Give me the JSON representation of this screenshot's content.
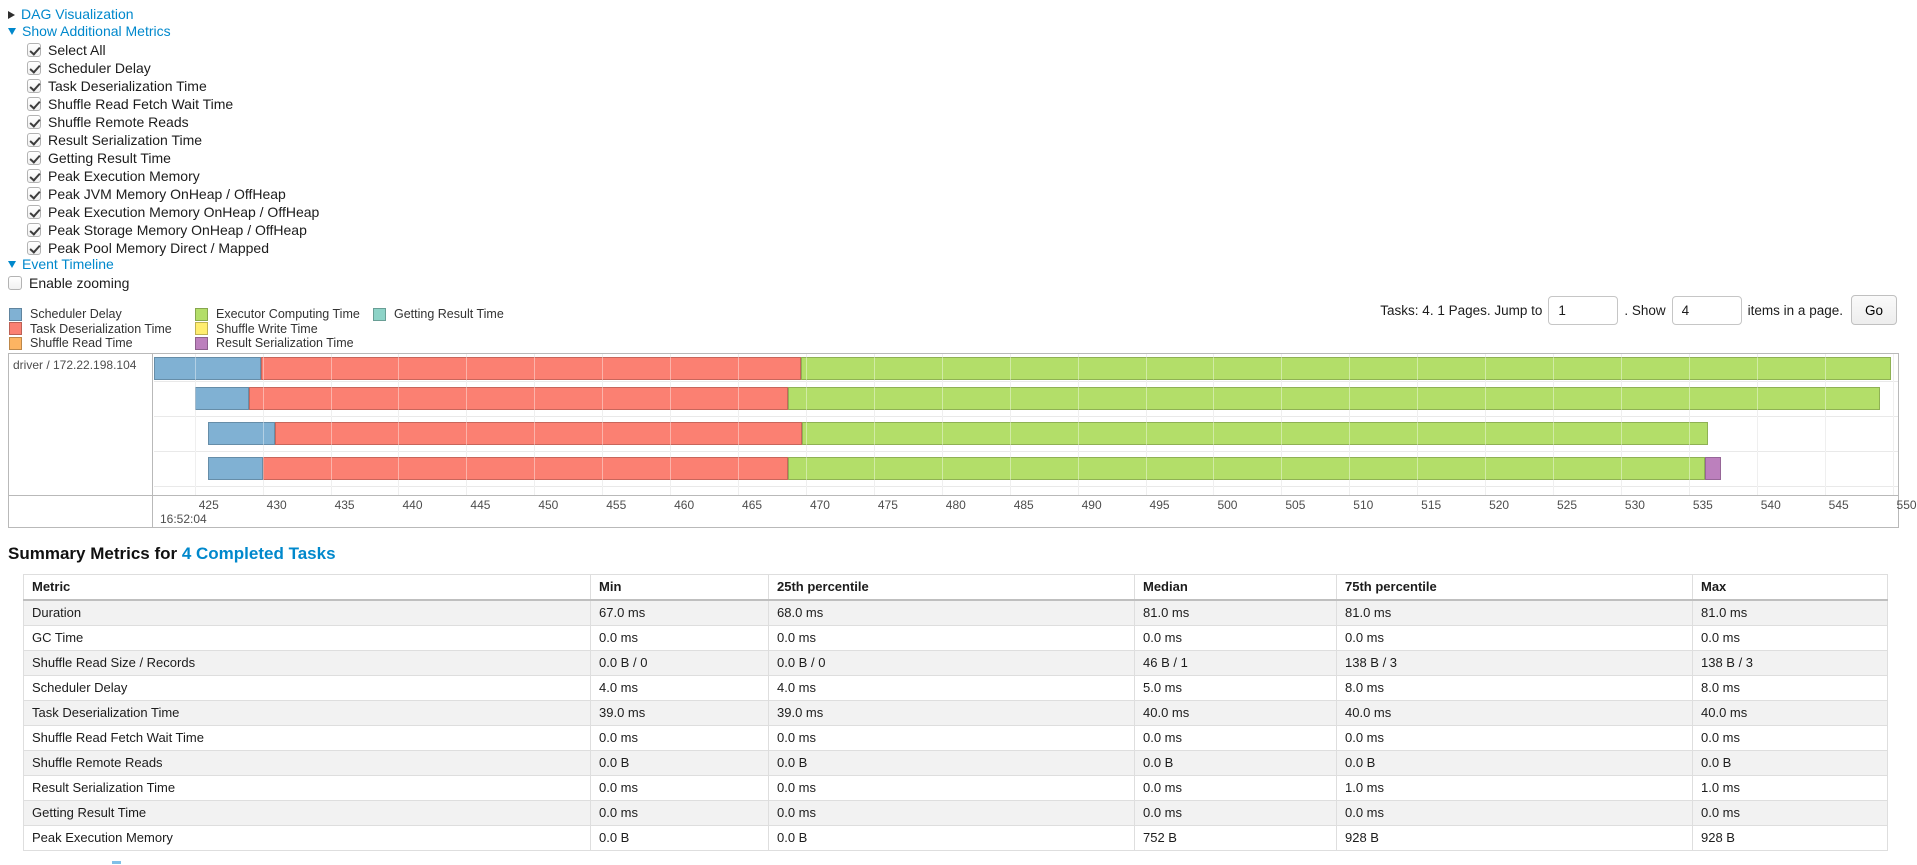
{
  "colors": {
    "link": "#0088cc",
    "scheduler_delay": "#80B1D3",
    "deserialization": "#FB8072",
    "shuffle_read": "#FDB462",
    "executor_computing": "#B3DE69",
    "shuffle_write": "#FFED6F",
    "result_serialization": "#BC80BD",
    "getting_result": "#8DD3C7"
  },
  "toggles": {
    "dag": "DAG Visualization",
    "additional_metrics": "Show Additional Metrics",
    "event_timeline": "Event Timeline"
  },
  "metric_checkboxes": [
    {
      "label": "Select All",
      "checked": true
    },
    {
      "label": "Scheduler Delay",
      "checked": true
    },
    {
      "label": "Task Deserialization Time",
      "checked": true
    },
    {
      "label": "Shuffle Read Fetch Wait Time",
      "checked": true
    },
    {
      "label": "Shuffle Remote Reads",
      "checked": true
    },
    {
      "label": "Result Serialization Time",
      "checked": true
    },
    {
      "label": "Getting Result Time",
      "checked": true
    },
    {
      "label": "Peak Execution Memory",
      "checked": true
    },
    {
      "label": "Peak JVM Memory OnHeap / OffHeap",
      "checked": true
    },
    {
      "label": "Peak Execution Memory OnHeap / OffHeap",
      "checked": true
    },
    {
      "label": "Peak Storage Memory OnHeap / OffHeap",
      "checked": true
    },
    {
      "label": "Peak Pool Memory Direct / Mapped",
      "checked": true
    }
  ],
  "enable_zooming": {
    "label": "Enable zooming",
    "checked": false
  },
  "pagination": {
    "tasks_text": "Tasks: 4. 1 Pages. Jump to",
    "jump_value": "1",
    "show_text": ". Show",
    "show_value": "4",
    "items_text": "items in a page.",
    "go_label": "Go"
  },
  "legend": {
    "columns": [
      [
        {
          "type": "scheduler_delay",
          "label": "Scheduler Delay"
        },
        {
          "type": "deserialization",
          "label": "Task Deserialization Time"
        },
        {
          "type": "shuffle_read",
          "label": "Shuffle Read Time"
        }
      ],
      [
        {
          "type": "executor_computing",
          "label": "Executor Computing Time"
        },
        {
          "type": "shuffle_write",
          "label": "Shuffle Write Time"
        },
        {
          "type": "result_serialization",
          "label": "Result Serialization Time"
        }
      ],
      [
        {
          "type": "getting_result",
          "label": "Getting Result Time"
        }
      ]
    ]
  },
  "chart_data": {
    "type": "timeline",
    "title": "Event Timeline",
    "row_label": "driver / 172.22.198.104",
    "axis_start": 422.0,
    "axis_end": 550.4,
    "ticks": [
      425,
      430,
      435,
      440,
      445,
      450,
      455,
      460,
      465,
      470,
      475,
      480,
      485,
      490,
      495,
      500,
      505,
      510,
      515,
      520,
      525,
      530,
      535,
      540,
      545,
      550
    ],
    "major_tick_label": "16:52:04",
    "tasks": [
      {
        "segments": [
          {
            "type": "scheduler_delay",
            "start": 422.0,
            "end": 429.9
          },
          {
            "type": "deserialization",
            "start": 429.9,
            "end": 469.6
          },
          {
            "type": "executor_computing",
            "start": 469.6,
            "end": 549.9
          }
        ]
      },
      {
        "segments": [
          {
            "type": "scheduler_delay",
            "start": 425.0,
            "end": 429.0
          },
          {
            "type": "deserialization",
            "start": 429.0,
            "end": 468.7
          },
          {
            "type": "executor_computing",
            "start": 468.7,
            "end": 549.1
          }
        ]
      },
      {
        "segments": [
          {
            "type": "scheduler_delay",
            "start": 426.0,
            "end": 430.9
          },
          {
            "type": "deserialization",
            "start": 430.9,
            "end": 469.7
          },
          {
            "type": "executor_computing",
            "start": 469.7,
            "end": 536.4
          }
        ]
      },
      {
        "segments": [
          {
            "type": "scheduler_delay",
            "start": 426.0,
            "end": 430.0
          },
          {
            "type": "deserialization",
            "start": 430.0,
            "end": 468.7
          },
          {
            "type": "executor_computing",
            "start": 468.7,
            "end": 536.2
          },
          {
            "type": "result_serialization",
            "start": 536.2,
            "end": 537.4
          }
        ]
      }
    ]
  },
  "summary": {
    "title_prefix": "Summary Metrics for ",
    "title_link": "4 Completed Tasks",
    "columns": [
      "Metric",
      "Min",
      "25th percentile",
      "Median",
      "75th percentile",
      "Max"
    ],
    "rows": [
      {
        "metric": "Duration",
        "values": [
          "67.0 ms",
          "68.0 ms",
          "81.0 ms",
          "81.0 ms",
          "81.0 ms"
        ]
      },
      {
        "metric": "GC Time",
        "values": [
          "0.0 ms",
          "0.0 ms",
          "0.0 ms",
          "0.0 ms",
          "0.0 ms"
        ]
      },
      {
        "metric": "Shuffle Read Size / Records",
        "values": [
          "0.0 B / 0",
          "0.0 B / 0",
          "46 B / 1",
          "138 B / 3",
          "138 B / 3"
        ]
      },
      {
        "metric": "Scheduler Delay",
        "values": [
          "4.0 ms",
          "4.0 ms",
          "5.0 ms",
          "8.0 ms",
          "8.0 ms"
        ]
      },
      {
        "metric": "Task Deserialization Time",
        "values": [
          "39.0 ms",
          "39.0 ms",
          "40.0 ms",
          "40.0 ms",
          "40.0 ms"
        ]
      },
      {
        "metric": "Shuffle Read Fetch Wait Time",
        "values": [
          "0.0 ms",
          "0.0 ms",
          "0.0 ms",
          "0.0 ms",
          "0.0 ms"
        ]
      },
      {
        "metric": "Shuffle Remote Reads",
        "values": [
          "0.0 B",
          "0.0 B",
          "0.0 B",
          "0.0 B",
          "0.0 B"
        ]
      },
      {
        "metric": "Result Serialization Time",
        "values": [
          "0.0 ms",
          "0.0 ms",
          "0.0 ms",
          "1.0 ms",
          "1.0 ms"
        ]
      },
      {
        "metric": "Getting Result Time",
        "values": [
          "0.0 ms",
          "0.0 ms",
          "0.0 ms",
          "0.0 ms",
          "0.0 ms"
        ]
      },
      {
        "metric": "Peak Execution Memory",
        "values": [
          "0.0 B",
          "0.0 B",
          "752 B",
          "928 B",
          "928 B"
        ]
      }
    ]
  }
}
